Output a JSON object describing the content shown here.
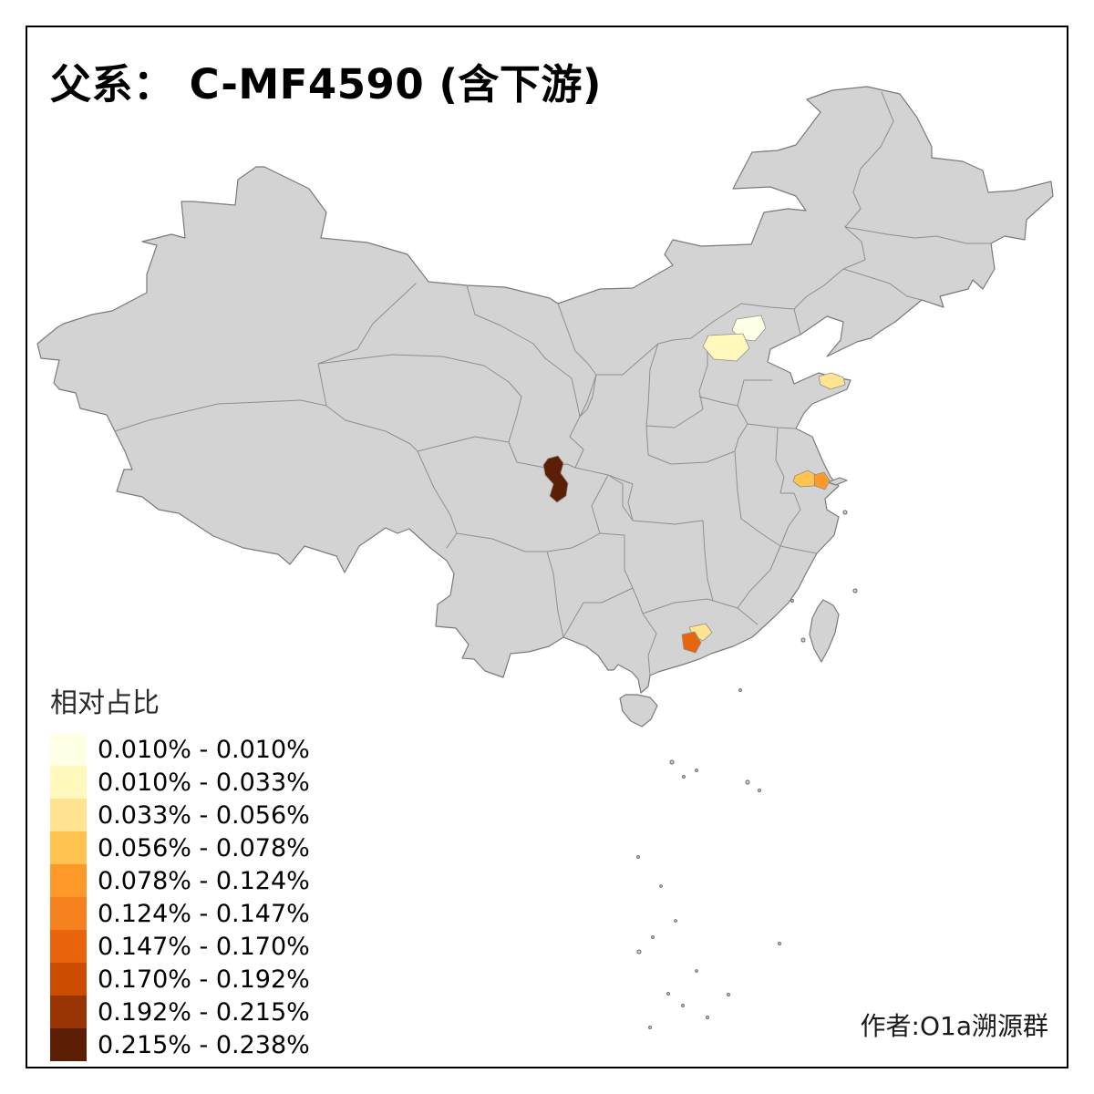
{
  "title": "父系： C-MF4590 (含下游)",
  "legend": {
    "title": "相对占比",
    "items": [
      {
        "range": "0.010% - 0.010%",
        "color": "#FFFFE5"
      },
      {
        "range": "0.010% - 0.033%",
        "color": "#FFF7BC"
      },
      {
        "range": "0.033% - 0.056%",
        "color": "#FEE391"
      },
      {
        "range": "0.056% - 0.078%",
        "color": "#FEC44F"
      },
      {
        "range": "0.078% - 0.124%",
        "color": "#FE9929"
      },
      {
        "range": "0.124% - 0.147%",
        "color": "#F5821F"
      },
      {
        "range": "0.147% - 0.170%",
        "color": "#E8650D"
      },
      {
        "range": "0.170% - 0.192%",
        "color": "#CC4C02"
      },
      {
        "range": "0.192% - 0.215%",
        "color": "#993404"
      },
      {
        "range": "0.215% - 0.238%",
        "color": "#5C1F05"
      }
    ]
  },
  "attribution": "作者:O1a溯源群",
  "map": {
    "land_fill": "#D3D3D3",
    "coast_stroke": "#7A7A7A",
    "border_stroke": "#8F8F8F",
    "background": "#FFFFFF",
    "regions": [
      {
        "name": "highlight-region-beijing-area",
        "class_index": 0
      },
      {
        "name": "highlight-region-hebei-area",
        "class_index": 1
      },
      {
        "name": "highlight-region-shandong-peninsula",
        "class_index": 2
      },
      {
        "name": "highlight-region-jiangsu-west",
        "class_index": 3
      },
      {
        "name": "highlight-region-jiangsu-east",
        "class_index": 4
      },
      {
        "name": "highlight-region-guangdong-fringe",
        "class_index": 2
      },
      {
        "name": "highlight-region-guangdong-core",
        "class_index": 6
      },
      {
        "name": "highlight-region-sichuan-dark",
        "class_index": 9
      }
    ]
  }
}
